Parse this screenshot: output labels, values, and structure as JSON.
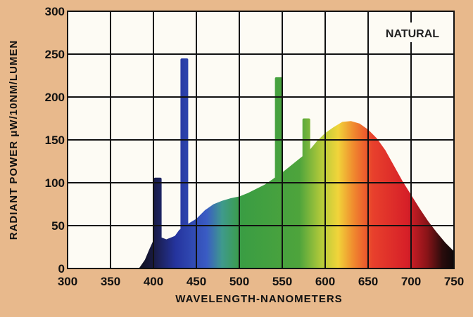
{
  "chart_data": {
    "type": "area",
    "title": "",
    "legend_label": "NATURAL",
    "legend_position": "top-right",
    "xlabel": "WAVELENGTH-NANOMETERS",
    "ylabel": "RADIANT POWER μW/10NM/LUMEN",
    "xlim": [
      300,
      750
    ],
    "ylim": [
      0,
      300
    ],
    "x_ticks": [
      "300",
      "350",
      "400",
      "450",
      "500",
      "550",
      "600",
      "650",
      "700",
      "750"
    ],
    "y_ticks": [
      "0",
      "50",
      "100",
      "150",
      "200",
      "250",
      "300"
    ],
    "grid": true,
    "background_color": "#fdfbf4",
    "continuum": {
      "x": [
        383,
        390,
        395,
        400,
        405,
        410,
        415,
        420,
        425,
        430,
        440,
        450,
        460,
        470,
        480,
        490,
        500,
        510,
        520,
        530,
        540,
        550,
        560,
        570,
        580,
        590,
        600,
        610,
        620,
        630,
        640,
        650,
        660,
        670,
        680,
        690,
        700,
        710,
        720,
        730,
        740,
        750
      ],
      "y": [
        0,
        10,
        22,
        33,
        38,
        36,
        34,
        36,
        38,
        45,
        52,
        58,
        68,
        75,
        79,
        82,
        84,
        88,
        93,
        98,
        105,
        112,
        120,
        128,
        136,
        148,
        158,
        165,
        171,
        172,
        169,
        162,
        152,
        138,
        120,
        102,
        86,
        70,
        55,
        42,
        30,
        20
      ]
    },
    "emission_lines": [
      {
        "wavelength": 405,
        "value": 106
      },
      {
        "wavelength": 436,
        "value": 245
      },
      {
        "wavelength": 546,
        "value": 223
      },
      {
        "wavelength": 578,
        "value": 175
      }
    ]
  }
}
